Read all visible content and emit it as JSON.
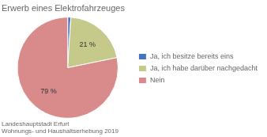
{
  "chart_data": {
    "type": "pie",
    "title": "Erwerb eines Elektrofahrzeuges",
    "categories": [
      "Ja, ich besitze bereits eins",
      "Ja, ich habe darüber nachgedacht",
      "Nein"
    ],
    "values": [
      1,
      21,
      79
    ],
    "value_labels": [
      null,
      "21 %",
      "79 %"
    ],
    "data_labels": true,
    "colors": [
      "#4472c4",
      "#c5c98a",
      "#d98b8b"
    ],
    "legend": "right",
    "annotations": [
      "Landeshauptstadt Erfurt",
      "Wohnungs- und Haushaltserhebung 2019"
    ]
  }
}
